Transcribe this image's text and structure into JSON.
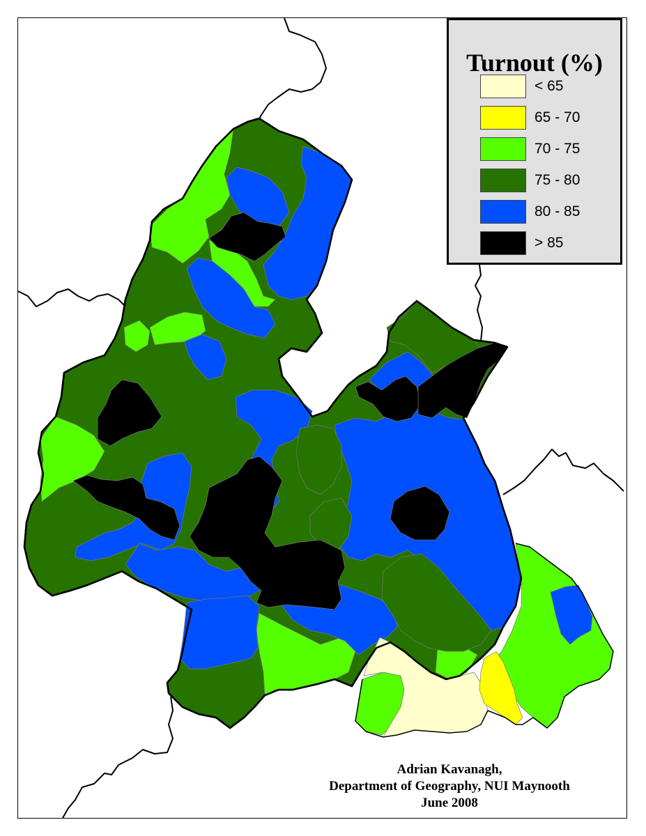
{
  "legend": {
    "title": "Turnout (%)",
    "classes": [
      {
        "label": "< 65",
        "color": "#ffffcc"
      },
      {
        "label": "65 - 70",
        "color": "#ffff00"
      },
      {
        "label": "70 - 75",
        "color": "#55ff00"
      },
      {
        "label": "75 - 80",
        "color": "#267300"
      },
      {
        "label": "80 - 85",
        "color": "#0050ff"
      },
      {
        "label": "> 85",
        "color": "#000000"
      }
    ]
  },
  "credits": {
    "author": "Adrian Kavanagh,",
    "department": "Department of Geography, NUI Maynooth",
    "date": "June 2008"
  }
}
